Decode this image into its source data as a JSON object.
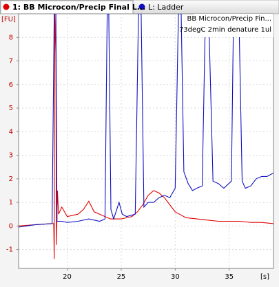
{
  "chart_data": {
    "type": "line",
    "ylabel": "[FU]",
    "xlabel": "[s]",
    "annotation": [
      "BB Microcon/Precip Fin...",
      "73degC 2min denature 1ul"
    ],
    "xlim": [
      15.5,
      39.1
    ],
    "xticks": [
      20,
      25,
      30,
      35
    ],
    "ylim": [
      -1.8,
      9
    ],
    "yticks": [
      -1,
      0,
      1,
      2,
      3,
      4,
      5,
      6,
      7,
      8
    ],
    "grid": true,
    "series": [
      {
        "name": "1: BB Microcon/Precip Final L...",
        "color": "#e00000",
        "x": [
          15.5,
          17,
          18.5,
          18.75,
          18.8,
          18.85,
          18.95,
          19.0,
          19.1,
          19.2,
          19.5,
          20,
          21,
          21.5,
          22,
          22.5,
          23,
          24,
          25,
          26,
          26.5,
          27,
          27.5,
          28,
          28.5,
          29,
          29.5,
          30,
          31,
          32,
          33,
          34,
          35,
          36,
          37,
          38,
          39.1
        ],
        "values": [
          0,
          0.05,
          0.1,
          0.1,
          -1.4,
          9,
          7.3,
          -0.8,
          1.5,
          0.5,
          0.8,
          0.4,
          0.5,
          0.7,
          1.05,
          0.6,
          0.5,
          0.3,
          0.3,
          0.4,
          0.6,
          0.9,
          1.3,
          1.5,
          1.4,
          1.2,
          0.9,
          0.6,
          0.35,
          0.3,
          0.25,
          0.2,
          0.2,
          0.2,
          0.15,
          0.15,
          0.1
        ]
      },
      {
        "name": "L: Ladder",
        "color": "#1010c0",
        "x": [
          15.5,
          17,
          18.6,
          18.8,
          18.95,
          19.05,
          19.5,
          20,
          21,
          22,
          23,
          23.5,
          23.7,
          23.85,
          24.05,
          24.3,
          24.8,
          25.1,
          25.5,
          26.3,
          26.6,
          26.85,
          27.1,
          27.5,
          28,
          28.5,
          29,
          29.5,
          30.0,
          30.3,
          30.55,
          30.8,
          31.2,
          31.6,
          32,
          32.5,
          32.8,
          33.1,
          33.5,
          34,
          34.5,
          35.2,
          35.4,
          35.9,
          36.2,
          36.5,
          37,
          37.5,
          38,
          38.5,
          39.1
        ],
        "values": [
          -0.05,
          0.05,
          0.1,
          9,
          9,
          0.2,
          0.2,
          0.15,
          0.2,
          0.3,
          0.2,
          0.3,
          9,
          9,
          0.7,
          0.3,
          1.0,
          0.5,
          0.4,
          0.5,
          9,
          9,
          0.8,
          1.0,
          1.0,
          1.2,
          1.3,
          1.2,
          1.6,
          9,
          9,
          2.3,
          1.8,
          1.5,
          1.6,
          1.7,
          9,
          9,
          1.9,
          1.8,
          1.6,
          1.9,
          9,
          9,
          1.9,
          1.6,
          1.7,
          2.0,
          2.1,
          2.1,
          2.25
        ]
      }
    ]
  }
}
